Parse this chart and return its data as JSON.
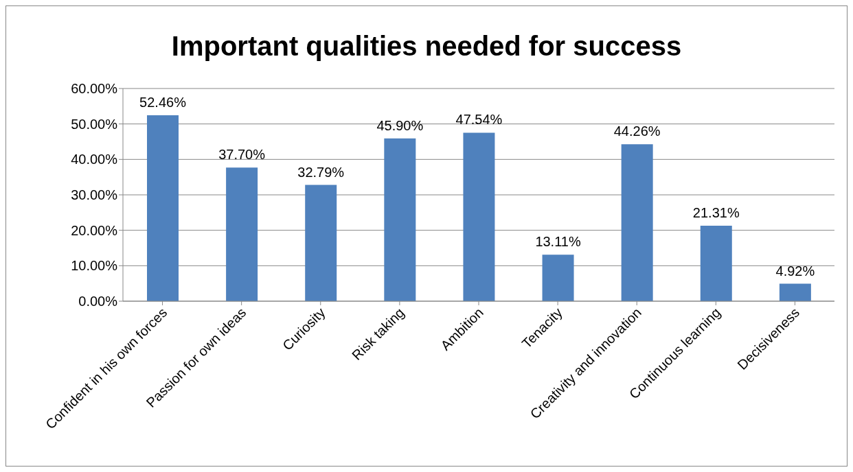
{
  "chart_data": {
    "type": "bar",
    "title": "Important qualities needed for success",
    "categories": [
      "Confident in his own forces",
      "Passion for own ideas",
      "Curiosity",
      "Risk taking",
      "Ambition",
      "Tenacity",
      "Creativity and innovation",
      "Continuous learning",
      "Decisiveness"
    ],
    "values": [
      52.46,
      37.7,
      32.79,
      45.9,
      47.54,
      13.11,
      44.26,
      21.31,
      4.92
    ],
    "value_labels": [
      "52.46%",
      "37.70%",
      "32.79%",
      "45.90%",
      "47.54%",
      "13.11%",
      "44.26%",
      "21.31%",
      "4.92%"
    ],
    "color": "#4f81bd",
    "ylim": [
      0,
      60
    ],
    "yticks": [
      {
        "value": 0,
        "label": "0.00%"
      },
      {
        "value": 10,
        "label": "10.00%"
      },
      {
        "value": 20,
        "label": "20.00%"
      },
      {
        "value": 30,
        "label": "30.00%"
      },
      {
        "value": 40,
        "label": "40.00%"
      },
      {
        "value": 50,
        "label": "50.00%"
      },
      {
        "value": 60,
        "label": "60.00%"
      }
    ],
    "grid": "y"
  }
}
